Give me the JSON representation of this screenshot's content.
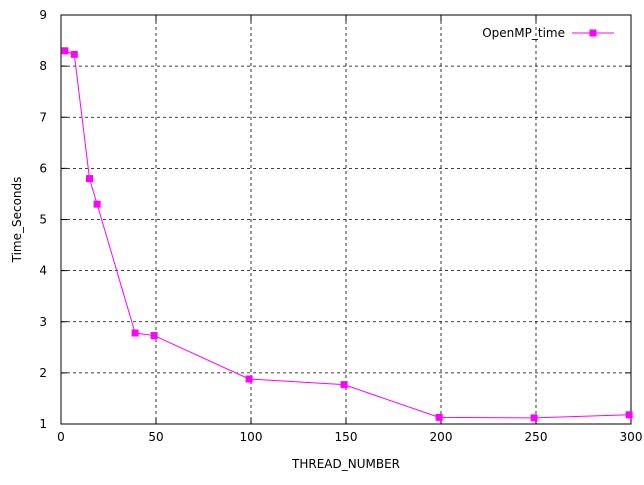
{
  "chart_data": {
    "type": "line",
    "title": "",
    "xlabel": "THREAD_NUMBER",
    "ylabel": "Time_Seconds",
    "xlim": [
      0,
      300
    ],
    "ylim": [
      1,
      9
    ],
    "x_ticks": [
      0,
      50,
      100,
      150,
      200,
      250,
      300
    ],
    "y_ticks": [
      1,
      2,
      3,
      4,
      5,
      6,
      7,
      8,
      9
    ],
    "x_tick_labels": [
      "0",
      "50",
      "100",
      "150",
      "200",
      "250",
      "300"
    ],
    "y_tick_labels": [
      "1",
      "2",
      "3",
      "4",
      "5",
      "6",
      "7",
      "8",
      "9"
    ],
    "grid": true,
    "legend_position": "top-right",
    "series": [
      {
        "name": "OpenMP_time",
        "color": "#ff00ff",
        "marker": "square",
        "x": [
          2,
          7,
          15,
          19,
          39,
          49,
          99,
          149,
          199,
          249,
          299
        ],
        "y": [
          8.3,
          8.23,
          5.8,
          5.3,
          2.78,
          2.73,
          1.88,
          1.77,
          1.13,
          1.12,
          1.18
        ]
      }
    ]
  }
}
